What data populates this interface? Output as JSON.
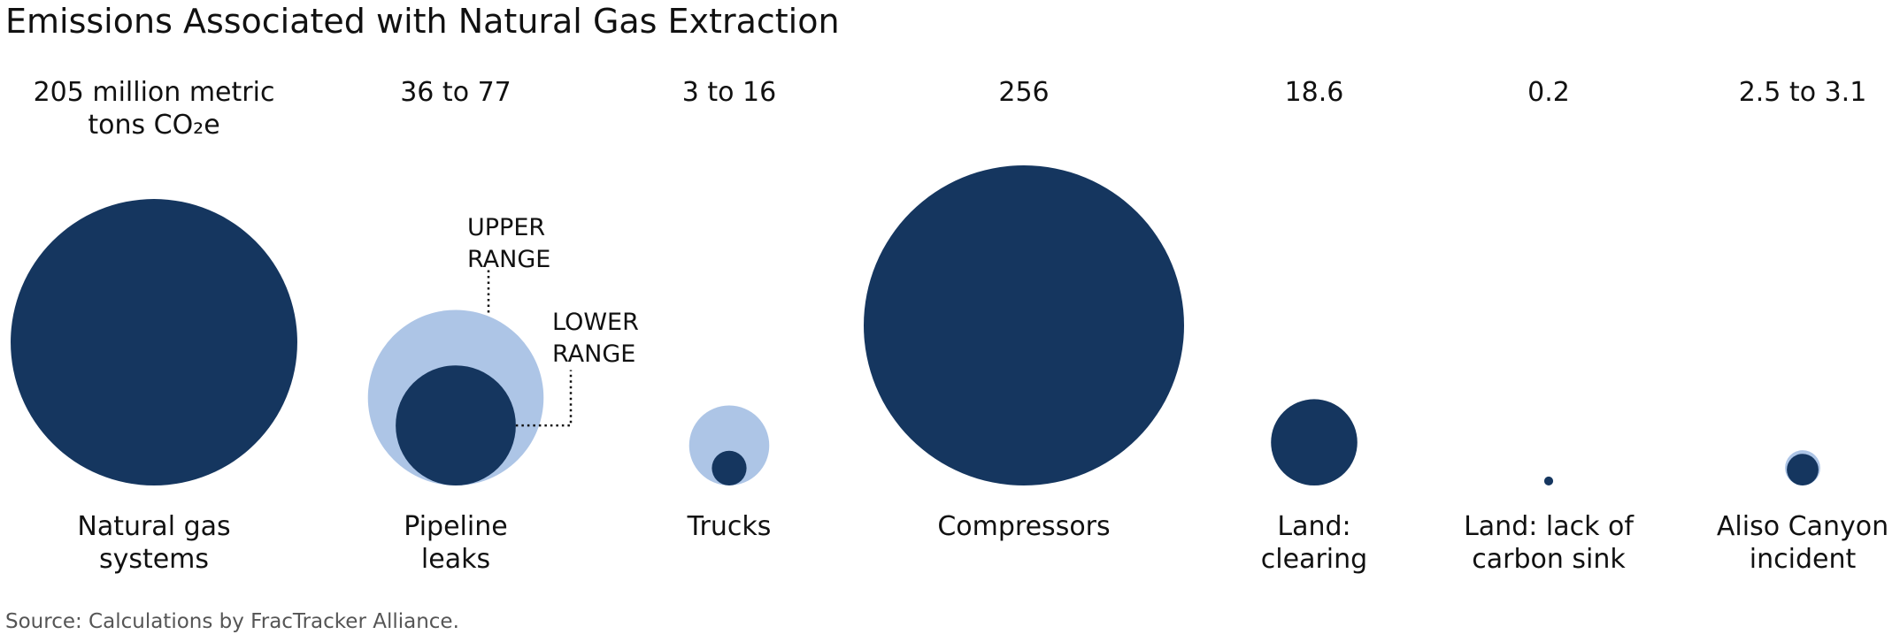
{
  "chart_data": {
    "type": "bubble",
    "title": "Emissions Associated with Natural Gas Extraction",
    "categories": [
      "Natural gas systems",
      "Pipeline leaks",
      "Trucks",
      "Compressors",
      "Land: clearing",
      "Land: lack of carbon sink",
      "Aliso Canyon incident"
    ],
    "value_labels": [
      "205 million metric tons CO₂e",
      "36 to 77",
      "3 to 16",
      "256",
      "18.6",
      "0.2",
      "2.5 to 3.1"
    ],
    "series": [
      {
        "name": "UPPER RANGE",
        "color": "#adc5e6",
        "values": [
          null,
          77,
          16,
          null,
          null,
          null,
          3.1
        ]
      },
      {
        "name": "LOWER RANGE",
        "color": "#15365f",
        "values": [
          205,
          36,
          3,
          256,
          18.6,
          0.2,
          2.5
        ]
      }
    ],
    "source": "Source: Calculations by FracTracker Alliance."
  }
}
